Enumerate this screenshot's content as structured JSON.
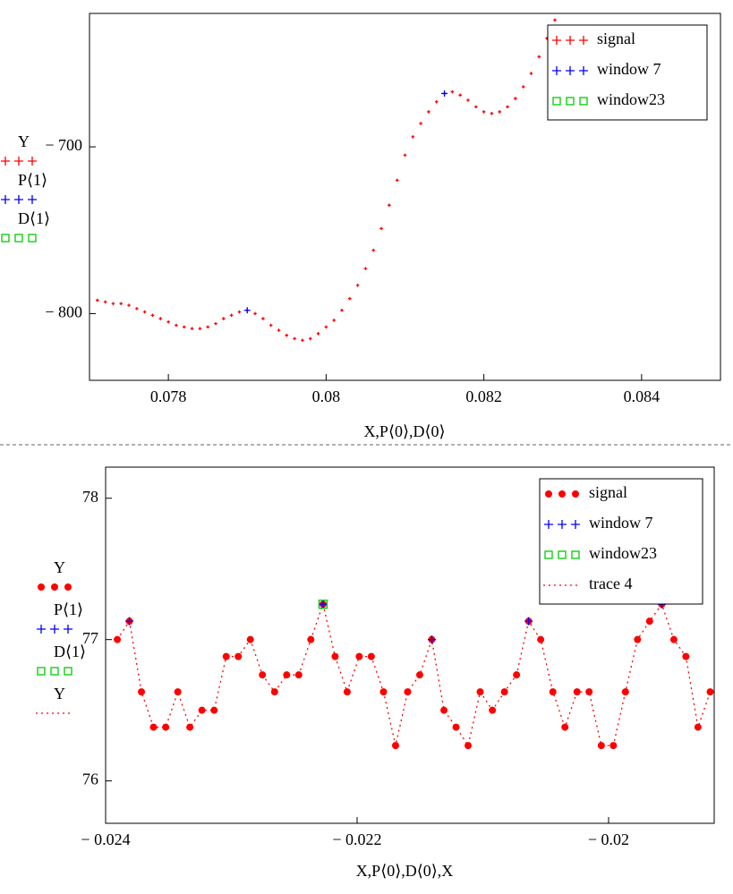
{
  "chart_data": [
    {
      "type": "scatter",
      "x_label": "X,P⟨0⟩,D⟨0⟩",
      "y_labels": [
        "Y",
        "P⟨1⟩",
        "D⟨1⟩"
      ],
      "xlim": [
        0.077,
        0.085
      ],
      "ylim": [
        -840,
        -620
      ],
      "xticks": [
        0.078,
        0.08,
        0.082,
        0.084
      ],
      "yticks": [
        {
          "value": -700,
          "label": "− 700"
        },
        {
          "value": -800,
          "label": "− 800"
        }
      ],
      "legend": "upper right",
      "series": [
        {
          "name": "signal",
          "color": "#ff0000",
          "marker": "plus",
          "x": [
            0.0771,
            0.0772,
            0.0773,
            0.0774,
            0.0775,
            0.0776,
            0.0777,
            0.0778,
            0.0779,
            0.078,
            0.0781,
            0.0782,
            0.0783,
            0.0784,
            0.0785,
            0.0786,
            0.0787,
            0.0788,
            0.0789,
            0.079,
            0.0791,
            0.0792,
            0.0793,
            0.0794,
            0.0795,
            0.0796,
            0.0797,
            0.0798,
            0.0799,
            0.08,
            0.0801,
            0.0802,
            0.0803,
            0.0804,
            0.0805,
            0.0806,
            0.0807,
            0.0808,
            0.0809,
            0.081,
            0.0811,
            0.0812,
            0.0813,
            0.0814,
            0.0815,
            0.0816,
            0.0817,
            0.0818,
            0.0819,
            0.082,
            0.0821,
            0.0822,
            0.0823,
            0.0824,
            0.0825,
            0.0826,
            0.0827,
            0.0828,
            0.0829
          ],
          "values": [
            -792,
            -793,
            -794,
            -794,
            -795,
            -797,
            -799,
            -801,
            -803,
            -805,
            -807,
            -808,
            -809,
            -809,
            -808,
            -806,
            -803,
            -801,
            -799,
            -798,
            -800,
            -803,
            -807,
            -810,
            -813,
            -815,
            -816,
            -815,
            -812,
            -808,
            -804,
            -798,
            -791,
            -783,
            -773,
            -762,
            -749,
            -735,
            -720,
            -705,
            -694,
            -686,
            -679,
            -673,
            -668,
            -667,
            -669,
            -672,
            -676,
            -679,
            -680,
            -679,
            -676,
            -671,
            -664,
            -656,
            -646,
            -635,
            -624
          ]
        },
        {
          "name": "window 7",
          "color": "#0000ff",
          "marker": "plus",
          "x": [
            0.079,
            0.0815
          ],
          "values": [
            -798,
            -668
          ]
        },
        {
          "name": "window23",
          "color": "#00cc00",
          "marker": "square",
          "x": [],
          "values": []
        }
      ]
    },
    {
      "type": "scatter",
      "x_label": "X,P⟨0⟩,D⟨0⟩,X",
      "y_labels": [
        "Y",
        "P⟨1⟩",
        "D⟨1⟩",
        "Y"
      ],
      "xlim": [
        -0.024,
        -0.01916
      ],
      "ylim": [
        75.7,
        78.22
      ],
      "xticks": [
        {
          "value": -0.024,
          "label": "− 0.024"
        },
        {
          "value": -0.022,
          "label": "− 0.022"
        },
        {
          "value": -0.02,
          "label": "− 0.02"
        }
      ],
      "yticks": [
        78,
        77,
        76
      ],
      "legend": "upper right",
      "series": [
        {
          "name": "signal",
          "color": "#ff0000",
          "marker": "dot",
          "x": [
            -0.023907,
            -0.023811,
            -0.023715,
            -0.023619,
            -0.023522,
            -0.023426,
            -0.02333,
            -0.023234,
            -0.023137,
            -0.023041,
            -0.022945,
            -0.022849,
            -0.022753,
            -0.022656,
            -0.02256,
            -0.022464,
            -0.022368,
            -0.022271,
            -0.022175,
            -0.022079,
            -0.021983,
            -0.021887,
            -0.02179,
            -0.021694,
            -0.021598,
            -0.021502,
            -0.021406,
            -0.021309,
            -0.021213,
            -0.021117,
            -0.021021,
            -0.020924,
            -0.020828,
            -0.020732,
            -0.020636,
            -0.02054,
            -0.020443,
            -0.020347,
            -0.020251,
            -0.020155,
            -0.020058,
            -0.019962,
            -0.019866,
            -0.01977,
            -0.019674,
            -0.019577,
            -0.019481,
            -0.019385,
            -0.019289,
            -0.019192
          ],
          "values": [
            77.0,
            77.13,
            76.63,
            76.38,
            76.38,
            76.63,
            76.38,
            76.5,
            76.5,
            76.88,
            76.88,
            77.0,
            76.75,
            76.63,
            76.75,
            76.75,
            77.0,
            77.25,
            76.88,
            76.63,
            76.88,
            76.88,
            76.63,
            76.25,
            76.63,
            76.75,
            77.0,
            76.5,
            76.38,
            76.25,
            76.63,
            76.5,
            76.63,
            76.75,
            77.13,
            77.0,
            76.63,
            76.38,
            76.63,
            76.63,
            76.25,
            76.25,
            76.63,
            77.0,
            77.13,
            77.25,
            77.0,
            76.88,
            76.38,
            76.63
          ]
        },
        {
          "name": "window 7",
          "color": "#0000ff",
          "marker": "plus",
          "x": [
            -0.023811,
            -0.022271,
            -0.021406,
            -0.020636,
            -0.019577
          ],
          "values": [
            77.13,
            77.25,
            77.0,
            77.13,
            77.25
          ]
        },
        {
          "name": "window23",
          "color": "#00cc00",
          "marker": "square",
          "x": [
            -0.022271
          ],
          "values": [
            77.25
          ]
        },
        {
          "name": "trace 4",
          "color": "#ff0000",
          "marker": "dotted-line",
          "x": [
            -0.023907,
            -0.023811,
            -0.023715,
            -0.023619,
            -0.023522,
            -0.023426,
            -0.02333,
            -0.023234,
            -0.023137,
            -0.023041,
            -0.022945,
            -0.022849,
            -0.022753,
            -0.022656,
            -0.02256,
            -0.022464,
            -0.022368,
            -0.022271,
            -0.022175,
            -0.022079,
            -0.021983,
            -0.021887,
            -0.02179,
            -0.021694,
            -0.021598,
            -0.021502,
            -0.021406,
            -0.021309,
            -0.021213,
            -0.021117,
            -0.021021,
            -0.020924,
            -0.020828,
            -0.020732,
            -0.020636,
            -0.02054,
            -0.020443,
            -0.020347,
            -0.020251,
            -0.020155,
            -0.020058,
            -0.019962,
            -0.019866,
            -0.01977,
            -0.019674,
            -0.019577,
            -0.019481,
            -0.019385,
            -0.019289,
            -0.019192
          ],
          "values": [
            77.0,
            77.13,
            76.63,
            76.38,
            76.38,
            76.63,
            76.38,
            76.5,
            76.5,
            76.88,
            76.88,
            77.0,
            76.75,
            76.63,
            76.75,
            76.75,
            77.0,
            77.25,
            76.88,
            76.63,
            76.88,
            76.88,
            76.63,
            76.25,
            76.63,
            76.75,
            77.0,
            76.5,
            76.38,
            76.25,
            76.63,
            76.5,
            76.63,
            76.75,
            77.13,
            77.0,
            76.63,
            76.38,
            76.63,
            76.63,
            76.25,
            76.25,
            76.63,
            77.0,
            77.13,
            77.25,
            77.0,
            76.88,
            76.38,
            76.63
          ]
        }
      ]
    }
  ]
}
